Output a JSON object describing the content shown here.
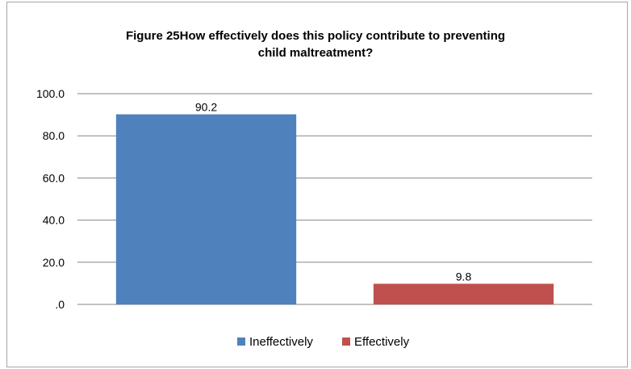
{
  "chart_data": {
    "type": "bar",
    "title_lines": [
      "Figure 25How effectively does this policy contribute to preventing",
      "child maltreatment?"
    ],
    "categories": [
      "Ineffectively",
      "Effectively"
    ],
    "values": [
      90.2,
      9.8
    ],
    "data_labels": [
      "90.2",
      "9.8"
    ],
    "colors": [
      "#4f81bd",
      "#c0504d"
    ],
    "ylim": [
      0,
      100
    ],
    "yticks": [
      0,
      20,
      40,
      60,
      80,
      100
    ],
    "ytick_labels": [
      ".0",
      "20.0",
      "40.0",
      "60.0",
      "80.0",
      "100.0"
    ],
    "grid": true,
    "legend": {
      "position": "bottom",
      "entries": [
        "Ineffectively",
        "Effectively"
      ]
    }
  }
}
